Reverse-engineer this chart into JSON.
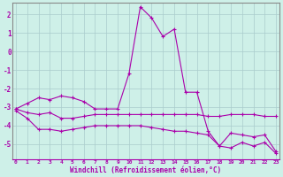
{
  "xlabel": "Windchill (Refroidissement éolien,°C)",
  "background_color": "#cef0e8",
  "line_color": "#aa00aa",
  "grid_color": "#aacccc",
  "axis_color": "#aa00aa",
  "x_hours": [
    0,
    1,
    2,
    3,
    4,
    5,
    6,
    7,
    8,
    9,
    10,
    11,
    12,
    13,
    14,
    15,
    16,
    17,
    18,
    19,
    20,
    21,
    22,
    23
  ],
  "line1": [
    -3.1,
    -2.8,
    -2.5,
    -2.6,
    -2.4,
    -2.5,
    -2.7,
    -3.1,
    -3.1,
    -3.1,
    -1.2,
    2.4,
    1.8,
    0.8,
    1.2,
    -2.2,
    -2.2,
    -4.3,
    -5.1,
    -4.4,
    -4.5,
    -4.6,
    -4.5,
    -5.4
  ],
  "line2": [
    -3.1,
    -3.3,
    -3.4,
    -3.3,
    -3.6,
    -3.6,
    -3.5,
    -3.4,
    -3.4,
    -3.4,
    -3.4,
    -3.4,
    -3.4,
    -3.4,
    -3.4,
    -3.4,
    -3.4,
    -3.5,
    -3.5,
    -3.4,
    -3.4,
    -3.4,
    -3.5,
    -3.5
  ],
  "line3": [
    -3.2,
    -3.6,
    -4.2,
    -4.2,
    -4.3,
    -4.2,
    -4.1,
    -4.0,
    -4.0,
    -4.0,
    -4.0,
    -4.0,
    -4.1,
    -4.2,
    -4.3,
    -4.3,
    -4.4,
    -4.5,
    -5.1,
    -5.2,
    -4.9,
    -5.1,
    -4.9,
    -5.5
  ],
  "ylim": [
    -5.8,
    2.6
  ],
  "yticks": [
    -5,
    -4,
    -3,
    -2,
    -1,
    0,
    1,
    2
  ],
  "xlim": [
    -0.3,
    23.3
  ]
}
